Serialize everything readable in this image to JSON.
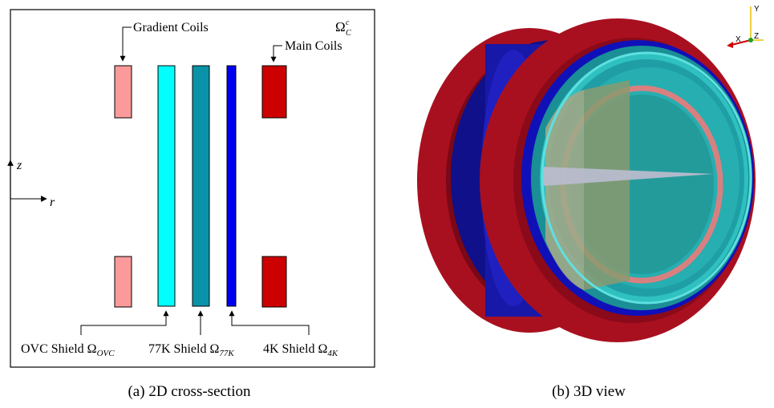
{
  "panel_a": {
    "caption": "(a) 2D cross-section",
    "domain_label": {
      "symbol": "Ω",
      "sup": "c",
      "sub": "C"
    },
    "labels": {
      "gradient_coils": "Gradient Coils",
      "main_coils": "Main Coils",
      "ovc_shield": {
        "text": "OVC Shield ",
        "symbol": "Ω",
        "sub": "OVC"
      },
      "k77_shield": {
        "text": "77K Shield ",
        "symbol": "Ω",
        "sub": "77K"
      },
      "k4_shield": {
        "text": "4K Shield ",
        "symbol": "Ω",
        "sub": "4K"
      }
    },
    "axes": {
      "z": "z",
      "r": "r"
    },
    "colors": {
      "gradient": "#fa9a9a",
      "ovc": "#00ffff",
      "k77": "#0a93a8",
      "k4": "#0000f0",
      "main": "#cc0000"
    }
  },
  "panel_b": {
    "caption": "(b) 3D view",
    "triad": {
      "x": "X",
      "y": "Y",
      "z": "Z"
    },
    "colors": {
      "main": "#a81020",
      "shield4k": "#1010a8",
      "shield77k": "#20b0b0",
      "gradient": "#d07070"
    }
  }
}
